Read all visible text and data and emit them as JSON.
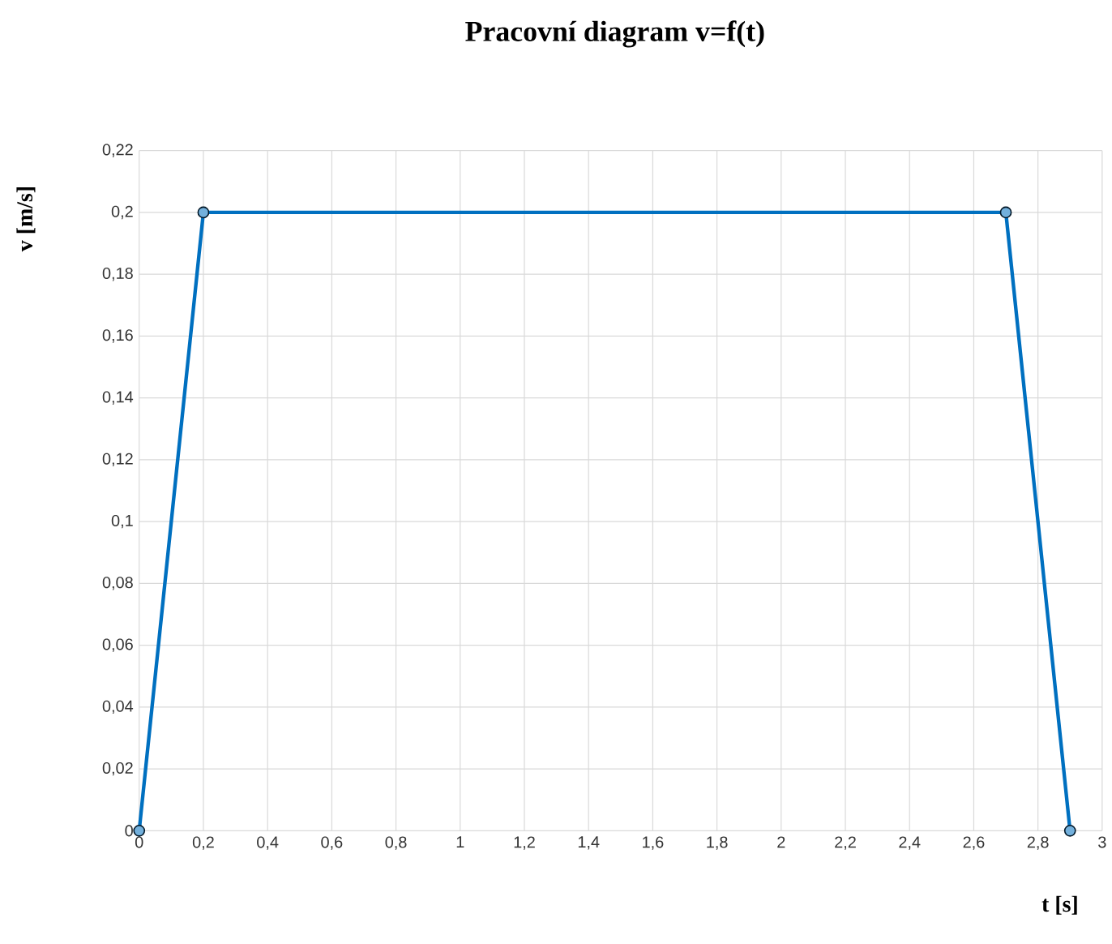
{
  "chart_data": {
    "type": "line",
    "title": "Pracovní  diagram  v=f(t)",
    "xlabel": "t [s]",
    "ylabel": "v [m/s]",
    "x": [
      0,
      0.2,
      2.7,
      2.9
    ],
    "series": [
      {
        "color": "#0070c0",
        "values": [
          0,
          0.2,
          0.2,
          0
        ]
      }
    ],
    "xlim": [
      0,
      3
    ],
    "xticks": [
      0,
      {
        "value": 0.2,
        "label": "0,2"
      },
      {
        "value": 0.4,
        "label": "0,4"
      },
      {
        "value": 0.6,
        "label": "0,6"
      },
      {
        "value": 0.8,
        "label": "0,8"
      },
      1,
      {
        "value": 1.2,
        "label": "1,2"
      },
      {
        "value": 1.4,
        "label": "1,4"
      },
      {
        "value": 1.6,
        "label": "1,6"
      },
      {
        "value": 1.8,
        "label": "1,8"
      },
      2,
      {
        "value": 2.2,
        "label": "2,2"
      },
      {
        "value": 2.4,
        "label": "2,4"
      },
      {
        "value": 2.6,
        "label": "2,6"
      },
      {
        "value": 2.8,
        "label": "2,8"
      },
      3
    ],
    "ylim": [
      0,
      0.22
    ],
    "yticks": [
      0,
      {
        "value": 0.02,
        "label": "0,02"
      },
      {
        "value": 0.04,
        "label": "0,04"
      },
      {
        "value": 0.06,
        "label": "0,06"
      },
      {
        "value": 0.08,
        "label": "0,08"
      },
      {
        "value": 0.1,
        "label": "0,1"
      },
      {
        "value": 0.12,
        "label": "0,12"
      },
      {
        "value": 0.14,
        "label": "0,14"
      },
      {
        "value": 0.16,
        "label": "0,16"
      },
      {
        "value": 0.18,
        "label": "0,18"
      },
      {
        "value": 0.2,
        "label": "0,2"
      },
      {
        "value": 0.22,
        "label": "0,22"
      }
    ],
    "grid": true,
    "marker": "circle",
    "line_style": "solid"
  }
}
